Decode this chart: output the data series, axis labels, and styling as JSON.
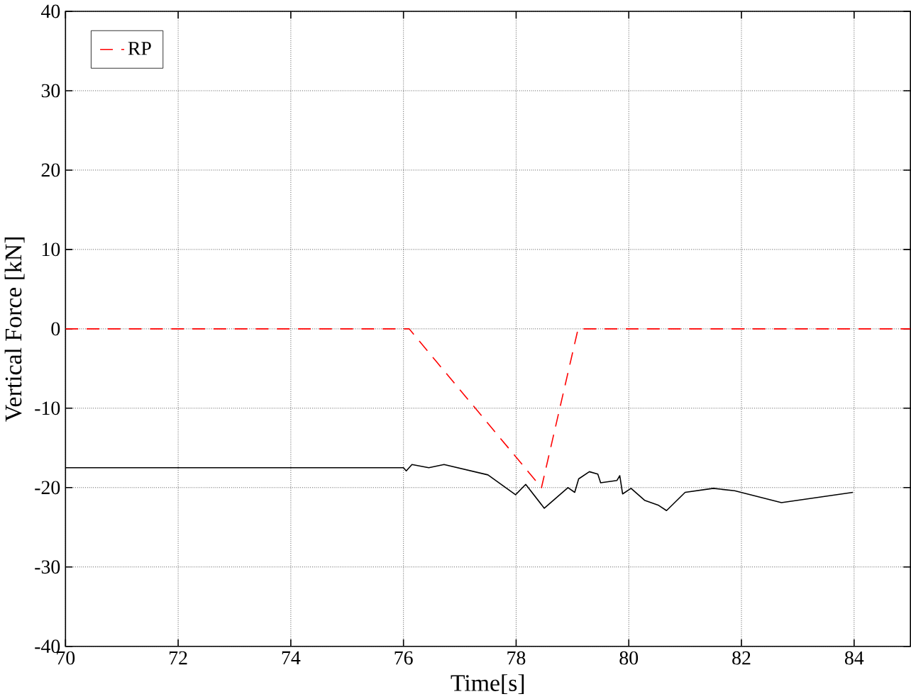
{
  "chart_data": {
    "type": "line",
    "xlabel": "Time[s]",
    "ylabel": "Vertical Force [kN]",
    "xlim": [
      70,
      85
    ],
    "xticks": [
      70,
      72,
      74,
      76,
      78,
      80,
      82,
      84
    ],
    "ylim": [
      -40,
      40
    ],
    "yticks": [
      -40,
      -30,
      -20,
      -10,
      0,
      10,
      20,
      30,
      40
    ],
    "grid": true,
    "legend": "top left",
    "series": [
      {
        "name": "RP",
        "color": "#ff0000",
        "line_style": "dashed",
        "x": [
          70,
          76.1,
          78.45,
          79.1,
          85
        ],
        "values": [
          0,
          0,
          -20,
          0,
          0
        ]
      },
      {
        "color": "#000000",
        "line_style": "solid",
        "x": [
          70,
          76.0,
          76.05,
          76.15,
          76.45,
          76.72,
          77.5,
          77.99,
          78.17,
          78.5,
          78.92,
          79.04,
          79.11,
          79.3,
          79.45,
          79.5,
          79.79,
          79.84,
          79.89,
          80.04,
          80.28,
          80.52,
          80.67,
          81.0,
          81.5,
          81.88,
          82.71,
          83.98
        ],
        "values": [
          -17.5,
          -17.5,
          -17.9,
          -17.1,
          -17.5,
          -17.1,
          -18.4,
          -20.9,
          -19.6,
          -22.6,
          -20,
          -20.6,
          -18.9,
          -18,
          -18.3,
          -19.4,
          -19.1,
          -18.5,
          -20.8,
          -20.1,
          -21.6,
          -22.2,
          -22.9,
          -20.6,
          -20.1,
          -20.4,
          -21.9,
          -20.6
        ]
      }
    ]
  }
}
